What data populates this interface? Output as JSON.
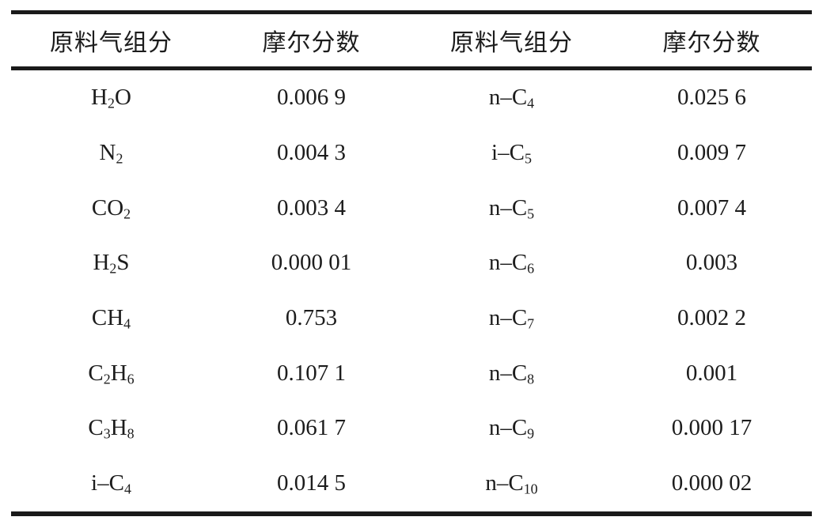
{
  "table": {
    "text_color": "#1a1a1a",
    "rule_color": "#1a1a1a",
    "headers": {
      "component_left": "原料气组分",
      "fraction_left": "摩尔分数",
      "component_right": "原料气组分",
      "fraction_right": "摩尔分数"
    },
    "rows": [
      {
        "comp_left": "H_2O",
        "frac_left": "0.006 9",
        "comp_right": "n–C_4",
        "frac_right": "0.025 6"
      },
      {
        "comp_left": "N_2",
        "frac_left": "0.004 3",
        "comp_right": "i–C_5",
        "frac_right": "0.009 7"
      },
      {
        "comp_left": "CO_2",
        "frac_left": "0.003 4",
        "comp_right": "n–C_5",
        "frac_right": "0.007 4"
      },
      {
        "comp_left": "H_2S",
        "frac_left": "0.000 01",
        "comp_right": "n–C_6",
        "frac_right": "0.003"
      },
      {
        "comp_left": "CH_4",
        "frac_left": "0.753",
        "comp_right": "n–C_7",
        "frac_right": "0.002 2"
      },
      {
        "comp_left": "C_2H_6",
        "frac_left": "0.107 1",
        "comp_right": "n–C_8",
        "frac_right": "0.001"
      },
      {
        "comp_left": "C_3H_8",
        "frac_left": "0.061 7",
        "comp_right": "n–C_9",
        "frac_right": "0.000 17"
      },
      {
        "comp_left": "i–C_4",
        "frac_left": "0.014 5",
        "comp_right": "n–C_10",
        "frac_right": "0.000 02"
      }
    ]
  }
}
